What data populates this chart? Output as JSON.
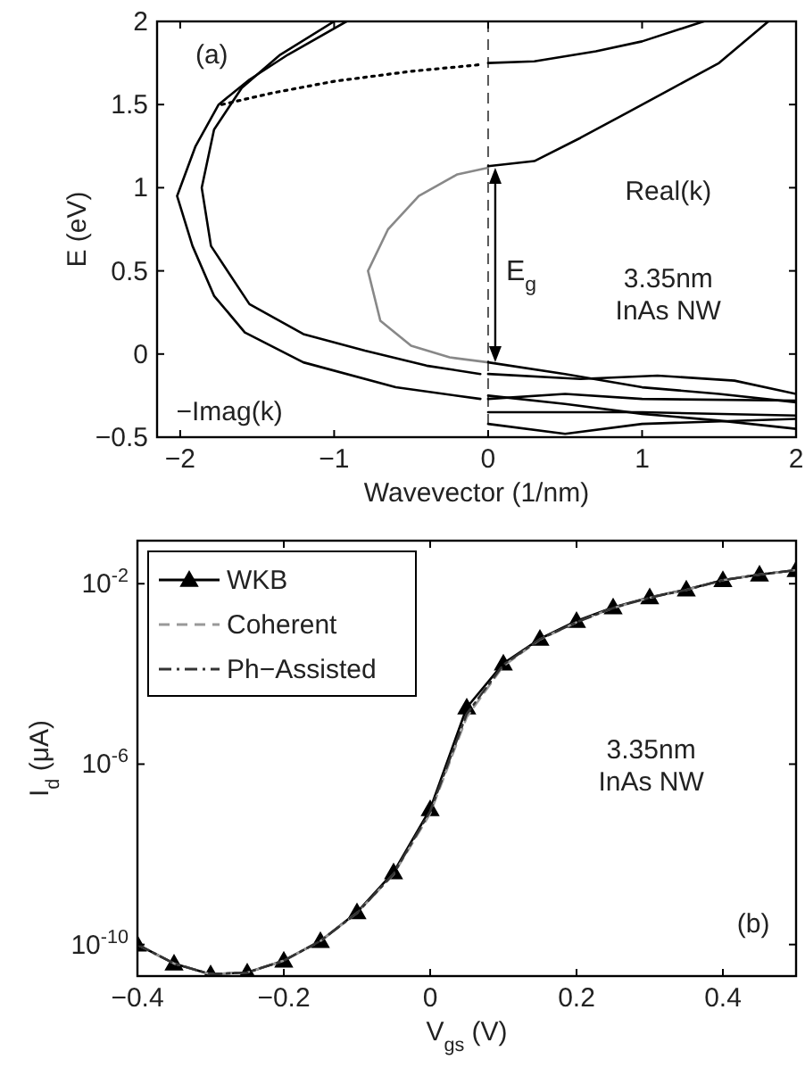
{
  "chart_data": [
    {
      "type": "line",
      "xlabel": "Wavevector (1/nm)",
      "ylabel": "E (eV)",
      "xlim": [
        -2.15,
        2
      ],
      "ylim": [
        -0.5,
        2
      ],
      "xticks": [
        -2,
        -1,
        0,
        1,
        2
      ],
      "yticks": [
        -0.5,
        0,
        0.5,
        1,
        1.5,
        2
      ],
      "grid": false,
      "legend": false,
      "series": [
        {
          "color": "#888888",
          "line_style": "solid",
          "x": [
            0,
            -0.2,
            -0.45,
            -0.65,
            -0.78,
            -0.7,
            -0.5,
            -0.25,
            0
          ],
          "values": [
            1.12,
            1.08,
            0.95,
            0.75,
            0.5,
            0.2,
            0.05,
            -0.02,
            -0.05
          ]
        },
        {
          "color": "#000000",
          "line_style": "solid",
          "x": [
            -0.92,
            -1.3,
            -1.55,
            -1.75,
            -1.9,
            -2.02,
            -1.92,
            -1.78,
            -1.58,
            -1.2,
            -0.6,
            -0.05
          ],
          "values": [
            2,
            1.8,
            1.65,
            1.5,
            1.25,
            0.95,
            0.65,
            0.35,
            0.13,
            -0.05,
            -0.2,
            -0.27
          ]
        },
        {
          "color": "#000000",
          "line_style": "solid",
          "x": [
            -1.0,
            -1.35,
            -1.6,
            -1.78,
            -1.86,
            -1.8,
            -1.55,
            -1.2,
            -0.8,
            -0.4,
            -0.05
          ],
          "values": [
            2,
            1.8,
            1.6,
            1.35,
            1.0,
            0.65,
            0.3,
            0.12,
            0.02,
            -0.07,
            -0.12
          ]
        },
        {
          "color": "#000000",
          "line_style": "dotted",
          "x": [
            -1.73,
            -1.4,
            -1.0,
            -0.5,
            -0.05
          ],
          "values": [
            1.5,
            1.57,
            1.64,
            1.7,
            1.74
          ]
        },
        {
          "color": "#000000",
          "line_style": "solid",
          "x": [
            0,
            0.3,
            0.7,
            1.0,
            1.4
          ],
          "values": [
            1.75,
            1.76,
            1.82,
            1.88,
            2.0
          ]
        },
        {
          "color": "#000000",
          "line_style": "solid",
          "x": [
            0,
            0.3,
            0.6,
            0.9,
            1.2,
            1.5,
            1.82
          ],
          "values": [
            1.13,
            1.16,
            1.3,
            1.45,
            1.6,
            1.75,
            2.0
          ]
        },
        {
          "color": "#000000",
          "line_style": "solid",
          "x": [
            0,
            0.5,
            1,
            1.5,
            2
          ],
          "values": [
            -0.05,
            -0.12,
            -0.2,
            -0.24,
            -0.29
          ]
        },
        {
          "color": "#000000",
          "line_style": "solid",
          "x": [
            0,
            0.6,
            1.1,
            1.6,
            2
          ],
          "values": [
            -0.12,
            -0.15,
            -0.13,
            -0.16,
            -0.24
          ]
        },
        {
          "color": "#000000",
          "line_style": "solid",
          "x": [
            0,
            0.5,
            1,
            1.5,
            2
          ],
          "values": [
            -0.25,
            -0.3,
            -0.36,
            -0.4,
            -0.45
          ]
        },
        {
          "color": "#000000",
          "line_style": "solid",
          "x": [
            0,
            0.5,
            1,
            2
          ],
          "values": [
            -0.27,
            -0.24,
            -0.27,
            -0.28
          ]
        },
        {
          "color": "#000000",
          "line_style": "solid",
          "x": [
            0,
            1,
            2
          ],
          "values": [
            -0.35,
            -0.35,
            -0.37
          ]
        },
        {
          "color": "#000000",
          "line_style": "solid",
          "x": [
            0,
            0.5,
            1,
            2
          ],
          "values": [
            -0.42,
            -0.48,
            -0.42,
            -0.39
          ]
        }
      ],
      "ref_lines": [
        {
          "axis": "x",
          "value": 0,
          "line_style": "dashed",
          "color": "#555555"
        }
      ],
      "annotations": [
        "(a)",
        "Real(k)",
        "3.35nm\nInAs NW",
        "−Imag(k)",
        {
          "text": "E$_{g}$",
          "x": 0,
          "y": 0.5
        }
      ]
    },
    {
      "type": "line",
      "xlabel": "V$_{gs}$ (V)",
      "ylabel": "I$_{d}$ (μA)",
      "log": true,
      "xlim": [
        -0.4,
        0.5
      ],
      "ylim": [
        2e-11,
        0.09
      ],
      "xticks": [
        -0.4,
        -0.2,
        0,
        0.2,
        0.4
      ],
      "yticks": [
        {
          "value": 1e-10,
          "label": "10$^{-10}$"
        },
        {
          "value": 1e-06,
          "label": "10$^{-6}$"
        },
        {
          "value": 0.01,
          "label": "10$^{-2}$"
        }
      ],
      "grid": false,
      "legend": "top left",
      "x": [
        -0.4,
        -0.35,
        -0.3,
        -0.25,
        -0.2,
        -0.15,
        -0.1,
        -0.05,
        0,
        0.05,
        0.1,
        0.15,
        0.2,
        0.25,
        0.3,
        0.35,
        0.4,
        0.45,
        0.5
      ],
      "series": [
        {
          "name": "WKB",
          "color": "#000000",
          "line_style": "solid",
          "marker": "triangle",
          "values": [
            1e-10,
            3.8e-11,
            2.2e-11,
            2.4e-11,
            4.4e-11,
            1.2e-10,
            5.2e-10,
            4e-09,
            1e-07,
            1.8e-05,
            0.00017,
            0.0006,
            0.0015,
            0.003,
            0.005,
            0.0074,
            0.012,
            0.016,
            0.02
          ]
        },
        {
          "name": "Coherent",
          "color": "#999999",
          "line_style": "dashed",
          "marker": "none",
          "values": [
            1e-10,
            3.8e-11,
            2.2e-11,
            2.4e-11,
            4.4e-11,
            1.2e-10,
            5e-10,
            3.6e-09,
            8e-08,
            1.1e-05,
            0.00015,
            0.00058,
            0.0014,
            0.0029,
            0.0049,
            0.0073,
            0.012,
            0.016,
            0.02
          ]
        },
        {
          "name": "Ph−Assisted",
          "color": "#333333",
          "line_style": "dashdot",
          "marker": "none",
          "values": [
            1e-10,
            3.8e-11,
            2.2e-11,
            2.4e-11,
            4.4e-11,
            1.2e-10,
            5e-10,
            3.7e-09,
            9e-08,
            1.3e-05,
            0.00016,
            0.00059,
            0.0014,
            0.0029,
            0.0049,
            0.0073,
            0.012,
            0.016,
            0.02
          ]
        }
      ],
      "annotations": [
        "3.35nm\nInAs NW",
        "(b)"
      ]
    }
  ]
}
